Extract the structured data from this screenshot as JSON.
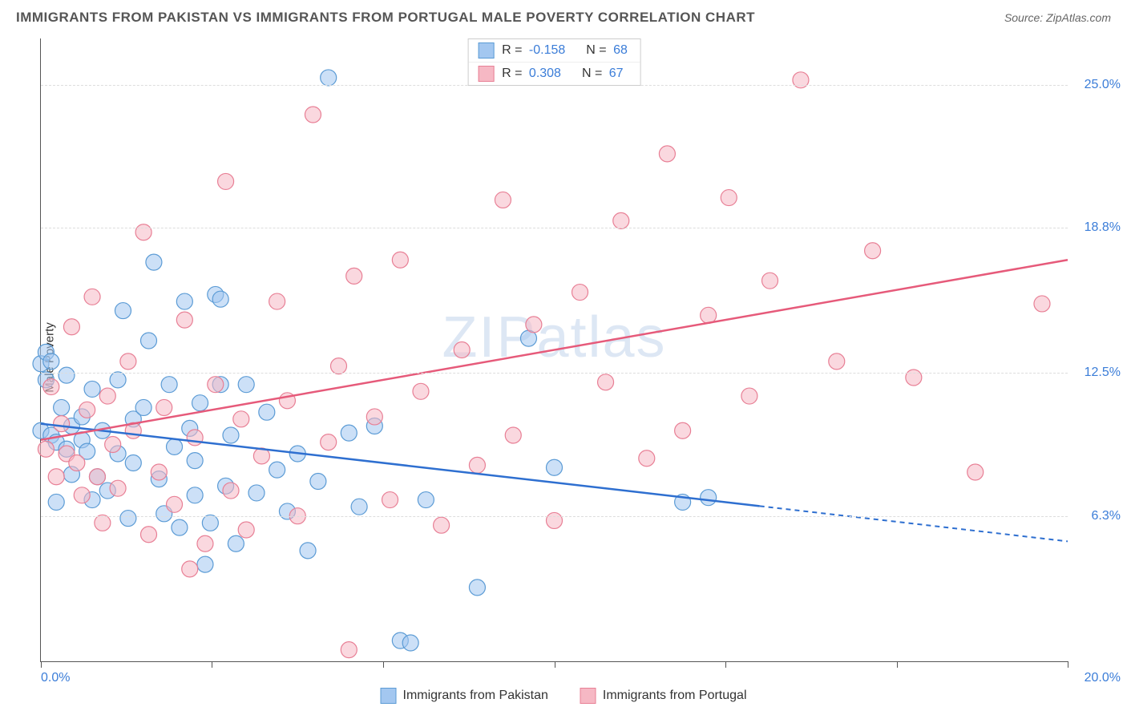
{
  "title": "IMMIGRANTS FROM PAKISTAN VS IMMIGRANTS FROM PORTUGAL MALE POVERTY CORRELATION CHART",
  "source": "Source: ZipAtlas.com",
  "watermark": "ZIPatlas",
  "y_axis_label": "Male Poverty",
  "chart": {
    "type": "scatter",
    "x_range": [
      0,
      20
    ],
    "y_range": [
      0,
      27
    ],
    "x_ticks": [
      0,
      3.33,
      6.67,
      10,
      13.33,
      16.67,
      20
    ],
    "x_start_label": "0.0%",
    "x_end_label": "20.0%",
    "y_grid": [
      {
        "value": 6.3,
        "label": "6.3%"
      },
      {
        "value": 12.5,
        "label": "12.5%"
      },
      {
        "value": 18.8,
        "label": "18.8%"
      },
      {
        "value": 25.0,
        "label": "25.0%"
      }
    ],
    "background_color": "#ffffff",
    "grid_color": "#dddddd",
    "axis_color": "#555555",
    "tick_label_color": "#3b7dd8",
    "marker_radius": 10,
    "marker_opacity": 0.55,
    "series": [
      {
        "name": "Immigrants from Pakistan",
        "fill_color": "#a3c7f0",
        "stroke_color": "#5b9bd5",
        "line_color": "#2e6fd0",
        "r": "-0.158",
        "n": "68",
        "trend": {
          "x1": 0,
          "y1": 10.3,
          "x2": 20,
          "y2": 5.2,
          "solid_until_x": 14
        },
        "points": [
          [
            0.0,
            10.0
          ],
          [
            0.0,
            12.9
          ],
          [
            0.1,
            12.2
          ],
          [
            0.1,
            13.4
          ],
          [
            0.2,
            9.8
          ],
          [
            0.2,
            13.0
          ],
          [
            0.3,
            6.9
          ],
          [
            0.3,
            9.5
          ],
          [
            0.4,
            11.0
          ],
          [
            0.5,
            12.4
          ],
          [
            0.5,
            9.2
          ],
          [
            0.6,
            10.2
          ],
          [
            0.6,
            8.1
          ],
          [
            0.8,
            9.6
          ],
          [
            0.8,
            10.6
          ],
          [
            0.9,
            9.1
          ],
          [
            1.0,
            11.8
          ],
          [
            1.0,
            7.0
          ],
          [
            1.1,
            8.0
          ],
          [
            1.2,
            10.0
          ],
          [
            1.3,
            7.4
          ],
          [
            1.5,
            9.0
          ],
          [
            1.5,
            12.2
          ],
          [
            1.6,
            15.2
          ],
          [
            1.7,
            6.2
          ],
          [
            1.8,
            10.5
          ],
          [
            1.8,
            8.6
          ],
          [
            2.0,
            11.0
          ],
          [
            2.1,
            13.9
          ],
          [
            2.2,
            17.3
          ],
          [
            2.3,
            7.9
          ],
          [
            2.4,
            6.4
          ],
          [
            2.5,
            12.0
          ],
          [
            2.6,
            9.3
          ],
          [
            2.7,
            5.8
          ],
          [
            2.8,
            15.6
          ],
          [
            2.9,
            10.1
          ],
          [
            3.0,
            7.2
          ],
          [
            3.0,
            8.7
          ],
          [
            3.1,
            11.2
          ],
          [
            3.2,
            4.2
          ],
          [
            3.3,
            6.0
          ],
          [
            3.4,
            15.9
          ],
          [
            3.5,
            15.7
          ],
          [
            3.5,
            12.0
          ],
          [
            3.6,
            7.6
          ],
          [
            3.7,
            9.8
          ],
          [
            3.8,
            5.1
          ],
          [
            4.0,
            12.0
          ],
          [
            4.2,
            7.3
          ],
          [
            4.4,
            10.8
          ],
          [
            4.6,
            8.3
          ],
          [
            4.8,
            6.5
          ],
          [
            5.0,
            9.0
          ],
          [
            5.2,
            4.8
          ],
          [
            5.4,
            7.8
          ],
          [
            5.6,
            25.3
          ],
          [
            6.0,
            9.9
          ],
          [
            6.2,
            6.7
          ],
          [
            6.5,
            10.2
          ],
          [
            7.0,
            0.9
          ],
          [
            7.2,
            0.8
          ],
          [
            7.5,
            7.0
          ],
          [
            8.5,
            3.2
          ],
          [
            9.5,
            14.0
          ],
          [
            10.0,
            8.4
          ],
          [
            12.5,
            6.9
          ],
          [
            13.0,
            7.1
          ]
        ]
      },
      {
        "name": "Immigrants from Portugal",
        "fill_color": "#f6b8c4",
        "stroke_color": "#e87f95",
        "line_color": "#e65a7a",
        "r": "0.308",
        "n": "67",
        "trend": {
          "x1": 0,
          "y1": 9.6,
          "x2": 20,
          "y2": 17.4,
          "solid_until_x": 20
        },
        "points": [
          [
            0.1,
            9.2
          ],
          [
            0.2,
            11.9
          ],
          [
            0.3,
            8.0
          ],
          [
            0.4,
            10.3
          ],
          [
            0.5,
            9.0
          ],
          [
            0.6,
            14.5
          ],
          [
            0.7,
            8.6
          ],
          [
            0.8,
            7.2
          ],
          [
            0.9,
            10.9
          ],
          [
            1.0,
            15.8
          ],
          [
            1.1,
            8.0
          ],
          [
            1.2,
            6.0
          ],
          [
            1.3,
            11.5
          ],
          [
            1.4,
            9.4
          ],
          [
            1.5,
            7.5
          ],
          [
            1.7,
            13.0
          ],
          [
            1.8,
            10.0
          ],
          [
            2.0,
            18.6
          ],
          [
            2.1,
            5.5
          ],
          [
            2.3,
            8.2
          ],
          [
            2.4,
            11.0
          ],
          [
            2.6,
            6.8
          ],
          [
            2.8,
            14.8
          ],
          [
            2.9,
            4.0
          ],
          [
            3.0,
            9.7
          ],
          [
            3.2,
            5.1
          ],
          [
            3.4,
            12.0
          ],
          [
            3.6,
            20.8
          ],
          [
            3.7,
            7.4
          ],
          [
            3.9,
            10.5
          ],
          [
            4.0,
            5.7
          ],
          [
            4.3,
            8.9
          ],
          [
            4.6,
            15.6
          ],
          [
            4.8,
            11.3
          ],
          [
            5.0,
            6.3
          ],
          [
            5.3,
            23.7
          ],
          [
            5.6,
            9.5
          ],
          [
            5.8,
            12.8
          ],
          [
            6.1,
            16.7
          ],
          [
            6.0,
            0.5
          ],
          [
            6.5,
            10.6
          ],
          [
            6.8,
            7.0
          ],
          [
            7.0,
            17.4
          ],
          [
            7.4,
            11.7
          ],
          [
            7.8,
            5.9
          ],
          [
            8.2,
            13.5
          ],
          [
            8.5,
            8.5
          ],
          [
            9.0,
            20.0
          ],
          [
            9.2,
            9.8
          ],
          [
            9.6,
            14.6
          ],
          [
            10.0,
            6.1
          ],
          [
            10.5,
            16.0
          ],
          [
            11.0,
            12.1
          ],
          [
            11.3,
            19.1
          ],
          [
            11.8,
            8.8
          ],
          [
            12.2,
            22.0
          ],
          [
            12.5,
            10.0
          ],
          [
            13.0,
            15.0
          ],
          [
            13.4,
            20.1
          ],
          [
            13.8,
            11.5
          ],
          [
            14.2,
            16.5
          ],
          [
            14.8,
            25.2
          ],
          [
            15.5,
            13.0
          ],
          [
            16.2,
            17.8
          ],
          [
            17.0,
            12.3
          ],
          [
            18.2,
            8.2
          ],
          [
            19.5,
            15.5
          ]
        ]
      }
    ]
  },
  "legend_labels": {
    "r_prefix": "R = ",
    "n_prefix": "N = "
  }
}
